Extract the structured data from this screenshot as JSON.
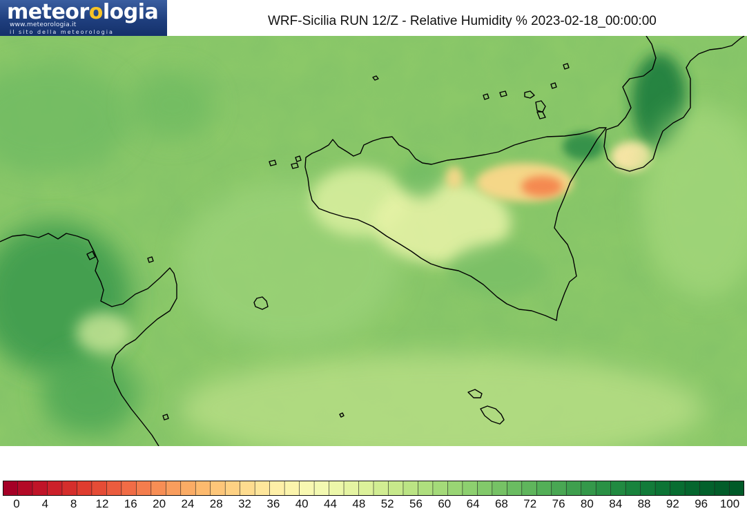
{
  "header": {
    "logo": {
      "brand_prefix": "meteor",
      "brand_sun": "o",
      "brand_suffix": "logia",
      "url": "www.meteorologia.it",
      "tagline": "il sito della meteorologia"
    },
    "title": "WRF-Sicilia RUN 12/Z - Relative Humidity % 2023-02-18_00:00:00"
  },
  "map": {
    "variable": "Relative Humidity",
    "unit": "%",
    "base_color": "#8bc868",
    "regions": [
      {
        "name": "central-sicily-dry",
        "rh": 42
      },
      {
        "name": "etna-area-dry",
        "rh": 22
      },
      {
        "name": "calabria-tip-dry",
        "rh": 48
      },
      {
        "name": "tyrrhenian-coast-calabria-moist",
        "rh": 94
      },
      {
        "name": "cape-bon-tunisia-moist",
        "rh": 90
      },
      {
        "name": "open-sea",
        "rh": 72
      }
    ]
  },
  "legend": {
    "min": 0,
    "max": 100,
    "step": 2,
    "labels": [
      "0",
      "4",
      "8",
      "12",
      "16",
      "20",
      "24",
      "28",
      "32",
      "36",
      "40",
      "44",
      "48",
      "52",
      "56",
      "60",
      "64",
      "68",
      "72",
      "76",
      "80",
      "84",
      "88",
      "92",
      "96",
      "100"
    ],
    "colors": [
      "#a50026",
      "#b50a27",
      "#c51929",
      "#d62a27",
      "#e03e2f",
      "#e8533a",
      "#f06844",
      "#f47d4d",
      "#f89357",
      "#fca662",
      "#fdb96d",
      "#fdc97a",
      "#fed788",
      "#fee396",
      "#feeea6",
      "#fef6b2",
      "#f8fbb2",
      "#eef8a8",
      "#e1f39c",
      "#d0ec90",
      "#bee585",
      "#acdd7c",
      "#99d574",
      "#87cb6b",
      "#75c264",
      "#63b85d",
      "#52ae57",
      "#42a251",
      "#34964a",
      "#278a43",
      "#1b7d3c",
      "#0f7035",
      "#06622d",
      "#04552a",
      "#02492a",
      "#013f26",
      "#006837",
      "#00603a",
      "#005a3a",
      "#004f30",
      "#005235",
      "#004528",
      "#003d24",
      "#004a2c",
      "#004026",
      "#003a22",
      "#003520",
      "#00301e",
      "#002c1c",
      "#002a1a"
    ]
  }
}
